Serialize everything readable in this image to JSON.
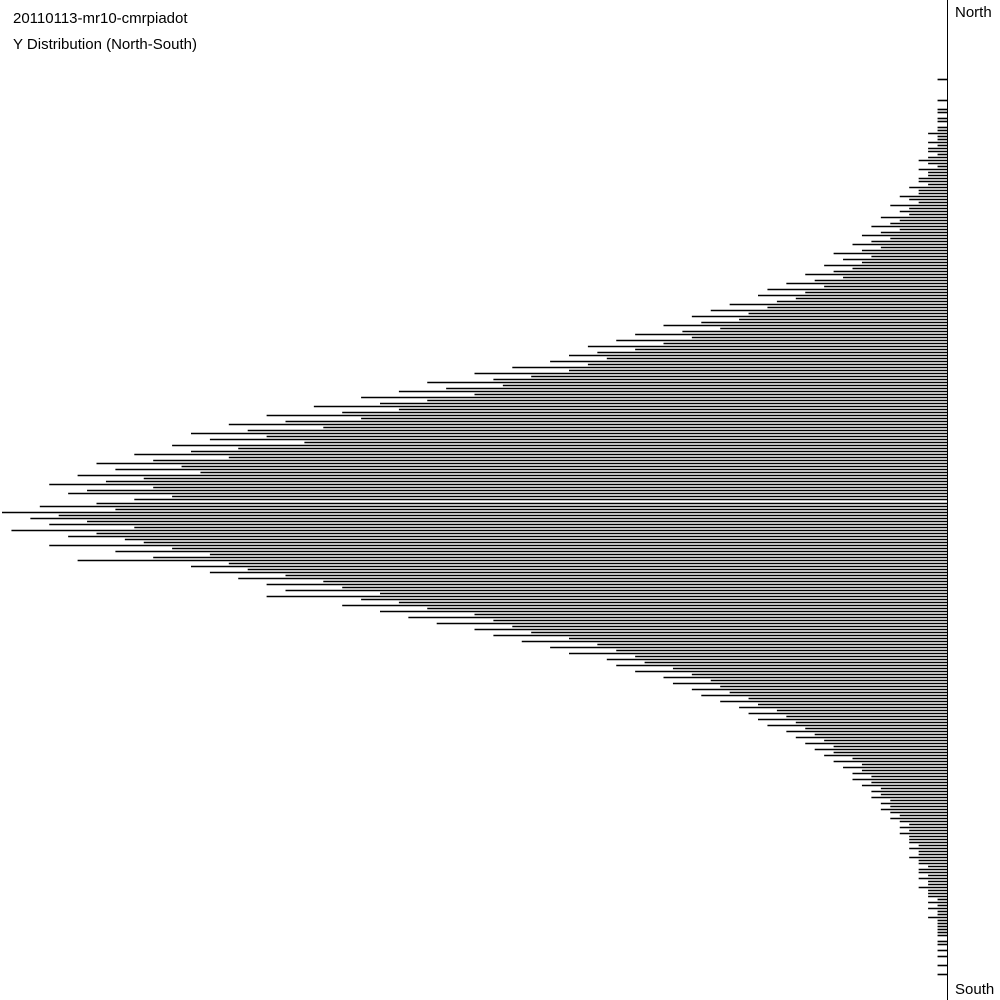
{
  "chart_data": {
    "type": "bar",
    "orientation": "horizontal",
    "title": "20110113-mr10-cmrpiadot",
    "subtitle": "Y Distribution (North-South)",
    "top_label": "North",
    "bottom_label": "South",
    "grid": false,
    "bar_color": "#000000",
    "values_note_scale": "relative frequency, percent of maximum bin",
    "values": [
      0,
      0,
      0,
      0,
      0,
      0,
      0,
      0,
      0,
      0,
      0,
      0,
      0,
      0,
      0,
      0,
      0,
      0,
      0,
      0,
      0,
      0,
      0,
      0,
      0,
      0,
      1,
      0,
      0,
      0,
      0,
      0,
      0,
      1,
      0,
      0,
      1,
      1,
      0,
      1,
      1,
      0,
      1,
      1,
      2,
      1,
      1,
      2,
      1,
      2,
      2,
      1,
      2,
      3,
      2,
      1,
      3,
      2,
      2,
      3,
      3,
      2,
      4,
      3,
      3,
      5,
      4,
      3,
      6,
      4,
      5,
      4,
      7,
      5,
      6,
      8,
      5,
      7,
      9,
      6,
      8,
      10,
      7,
      9,
      12,
      8,
      11,
      9,
      13,
      10,
      12,
      15,
      11,
      14,
      17,
      13,
      19,
      15,
      20,
      16,
      18,
      23,
      19,
      25,
      21,
      27,
      22,
      26,
      30,
      24,
      28,
      33,
      27,
      35,
      30,
      38,
      33,
      37,
      40,
      36,
      42,
      38,
      46,
      40,
      50,
      44,
      48,
      55,
      47,
      53,
      58,
      50,
      62,
      55,
      60,
      67,
      58,
      64,
      72,
      62,
      70,
      76,
      66,
      74,
      80,
      72,
      78,
      68,
      82,
      75,
      80,
      86,
      76,
      84,
      90,
      81,
      88,
      79,
      92,
      85,
      89,
      95,
      84,
      91,
      93,
      82,
      86,
      90,
      96,
      88,
      100,
      94,
      97,
      91,
      95,
      86,
      99,
      90,
      93,
      87,
      85,
      95,
      82,
      88,
      78,
      84,
      92,
      76,
      80,
      74,
      78,
      70,
      75,
      66,
      72,
      64,
      70,
      60,
      72,
      62,
      58,
      64,
      55,
      60,
      50,
      57,
      48,
      54,
      46,
      50,
      44,
      48,
      40,
      45,
      37,
      42,
      35,
      40,
      33,
      36,
      32,
      35,
      29,
      33,
      27,
      30,
      25,
      29,
      24,
      27,
      23,
      26,
      21,
      24,
      20,
      22,
      18,
      21,
      17,
      20,
      16,
      19,
      15,
      17,
      14,
      16,
      13,
      15,
      12,
      14,
      12,
      13,
      10,
      12,
      9,
      11,
      9,
      10,
      8,
      10,
      8,
      9,
      7,
      8,
      7,
      8,
      6,
      7,
      6,
      7,
      6,
      5,
      6,
      5,
      4,
      5,
      4,
      5,
      4,
      4,
      4,
      3,
      4,
      3,
      3,
      4,
      3,
      3,
      2,
      3,
      3,
      2,
      3,
      2,
      2,
      3,
      2,
      2,
      2,
      1,
      2,
      1,
      2,
      1,
      1,
      2,
      1,
      1,
      1,
      1,
      1,
      1,
      0,
      1,
      1,
      0,
      1,
      0,
      1,
      0,
      0,
      1,
      0,
      0,
      1,
      0,
      0,
      0,
      0,
      0,
      0,
      0,
      0
    ]
  }
}
